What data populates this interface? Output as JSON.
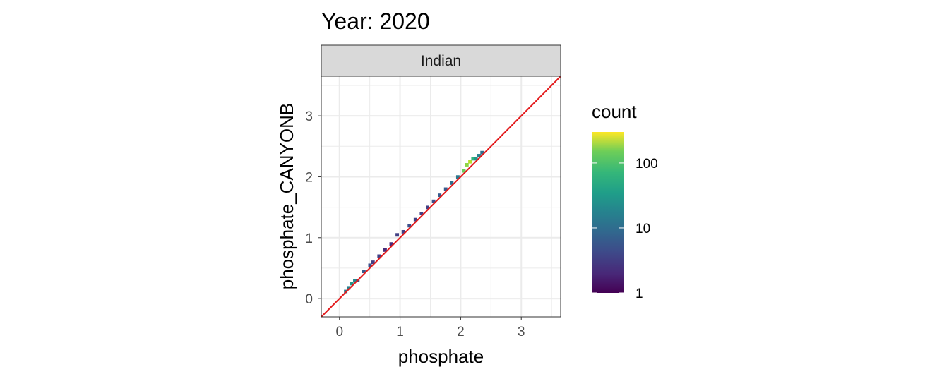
{
  "chart_data": {
    "type": "heatmap",
    "title": "Year: 2020",
    "facet": "Indian",
    "xlabel": "phosphate",
    "ylabel": "phosphate_CANYONB",
    "xlim": [
      -0.3,
      3.65
    ],
    "ylim": [
      -0.3,
      3.65
    ],
    "xticks": [
      0,
      1,
      2,
      3
    ],
    "yticks": [
      0,
      1,
      2,
      3
    ],
    "grid": true,
    "reference_line": {
      "slope": 1,
      "intercept": 0,
      "color": "#e31a1c"
    },
    "legend": {
      "title": "count",
      "scale": "log10",
      "range": [
        1,
        300
      ],
      "ticks": [
        1,
        10,
        100
      ],
      "tick_labels": [
        "1",
        "10",
        "100"
      ],
      "palette": "viridis",
      "placement": "right"
    },
    "bin_width": 0.05,
    "bins": [
      {
        "x": 0.1,
        "y": 0.12,
        "count": 10
      },
      {
        "x": 0.15,
        "y": 0.18,
        "count": 12
      },
      {
        "x": 0.2,
        "y": 0.25,
        "count": 20
      },
      {
        "x": 0.25,
        "y": 0.3,
        "count": 14
      },
      {
        "x": 0.3,
        "y": 0.3,
        "count": 4
      },
      {
        "x": 0.4,
        "y": 0.45,
        "count": 5
      },
      {
        "x": 0.5,
        "y": 0.55,
        "count": 4
      },
      {
        "x": 0.55,
        "y": 0.6,
        "count": 3
      },
      {
        "x": 0.65,
        "y": 0.7,
        "count": 3
      },
      {
        "x": 0.75,
        "y": 0.8,
        "count": 2
      },
      {
        "x": 0.85,
        "y": 0.9,
        "count": 2
      },
      {
        "x": 0.95,
        "y": 1.05,
        "count": 3
      },
      {
        "x": 1.05,
        "y": 1.1,
        "count": 3
      },
      {
        "x": 1.15,
        "y": 1.2,
        "count": 4
      },
      {
        "x": 1.25,
        "y": 1.3,
        "count": 3
      },
      {
        "x": 1.35,
        "y": 1.4,
        "count": 3
      },
      {
        "x": 1.45,
        "y": 1.5,
        "count": 3
      },
      {
        "x": 1.55,
        "y": 1.6,
        "count": 4
      },
      {
        "x": 1.65,
        "y": 1.7,
        "count": 5
      },
      {
        "x": 1.75,
        "y": 1.8,
        "count": 5
      },
      {
        "x": 1.85,
        "y": 1.9,
        "count": 8
      },
      {
        "x": 1.95,
        "y": 2.0,
        "count": 10
      },
      {
        "x": 2.05,
        "y": 2.1,
        "count": 80
      },
      {
        "x": 2.1,
        "y": 2.2,
        "count": 110
      },
      {
        "x": 2.15,
        "y": 2.25,
        "count": 160
      },
      {
        "x": 2.2,
        "y": 2.3,
        "count": 40
      },
      {
        "x": 2.25,
        "y": 2.3,
        "count": 20
      },
      {
        "x": 2.3,
        "y": 2.35,
        "count": 12
      },
      {
        "x": 2.35,
        "y": 2.4,
        "count": 8
      }
    ]
  }
}
